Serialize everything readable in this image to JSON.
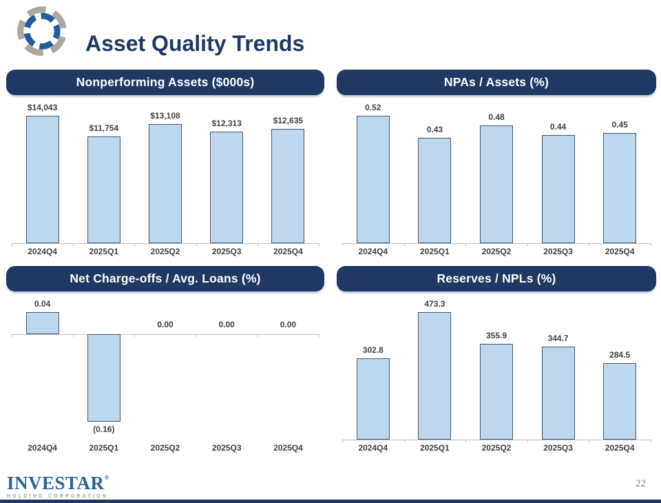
{
  "slide": {
    "title": "Asset Quality Trends",
    "page_number": "22",
    "footer_logo": {
      "wordmark": "INVESTAR",
      "trademark": "®",
      "tagline": "HOLDING CORPORATION"
    }
  },
  "colors": {
    "navy_accent": "#1F3864",
    "bar_fill": "#BDD7EE",
    "bar_border": "#44546A",
    "axis_gray": "#BFBFBF",
    "data_label_text": "#3F3F3F",
    "wordmark_blue": "#2B6398",
    "tagline_gray": "#A09B91",
    "page_number_gray": "#8B8676",
    "logo_blue": "#1F5C9E",
    "logo_gray": "#AEA79D"
  },
  "chart_data": [
    {
      "type": "bar",
      "title": "Nonperforming Assets ($000s)",
      "categories": [
        "2024Q4",
        "2025Q1",
        "2025Q2",
        "2025Q3",
        "2025Q4"
      ],
      "values": [
        14043,
        11754,
        13108,
        12313,
        12635
      ],
      "labels": [
        "$14,043",
        "$11,754",
        "$13,108",
        "$12,313",
        "$12,635"
      ],
      "xlabel": "",
      "ylabel": "",
      "grid": false,
      "legend_position": "none"
    },
    {
      "type": "bar",
      "title": "NPAs / Assets (%)",
      "categories": [
        "2024Q4",
        "2025Q1",
        "2025Q2",
        "2025Q3",
        "2025Q4"
      ],
      "values": [
        0.52,
        0.43,
        0.48,
        0.44,
        0.45
      ],
      "labels": [
        "0.52",
        "0.43",
        "0.48",
        "0.44",
        "0.45"
      ],
      "xlabel": "",
      "ylabel": "",
      "grid": false,
      "legend_position": "none"
    },
    {
      "type": "bar",
      "title": "Net Charge-offs / Avg. Loans (%)",
      "categories": [
        "2024Q4",
        "2025Q1",
        "2025Q2",
        "2025Q3",
        "2025Q4"
      ],
      "values": [
        0.04,
        -0.16,
        0,
        0,
        0
      ],
      "labels": [
        "0.04",
        "(0.16)",
        "0.00",
        "0.00",
        "0.00"
      ],
      "xlabel": "",
      "ylabel": "",
      "grid": false,
      "legend_position": "none"
    },
    {
      "type": "bar",
      "title": "Reserves / NPLs (%)",
      "categories": [
        "2024Q4",
        "2025Q1",
        "2025Q2",
        "2025Q3",
        "2025Q4"
      ],
      "values": [
        302.8,
        473.3,
        355.9,
        344.7,
        284.5
      ],
      "labels": [
        "302.8",
        "473.3",
        "355.9",
        "344.7",
        "284.5"
      ],
      "xlabel": "",
      "ylabel": "",
      "grid": false,
      "legend_position": "none"
    }
  ]
}
